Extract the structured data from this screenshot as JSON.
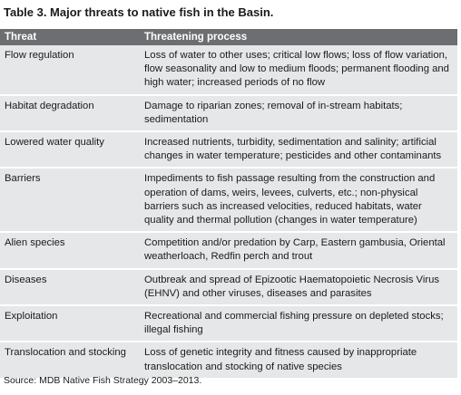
{
  "title": "Table 3. Major threats to native fish in the Basin.",
  "headers": {
    "threat": "Threat",
    "process": "Threatening process"
  },
  "rows": [
    {
      "threat": "Flow regulation",
      "process": "Loss of water to other uses; critical low flows; loss of flow variation, flow seasonality and low to medium floods; permanent flooding and high water; increased periods of no flow"
    },
    {
      "threat": "Habitat degradation",
      "process": "Damage to riparian zones; removal of in-stream habitats; sedimentation"
    },
    {
      "threat": "Lowered water quality",
      "process": "Increased nutrients, turbidity, sedimentation and salinity; artificial changes in water temperature; pesticides and other contaminants"
    },
    {
      "threat": "Barriers",
      "process": "Impediments to fish passage resulting from the construction and operation of dams, weirs, levees, culverts, etc.; non-physical barriers such as increased velocities, reduced habitats, water quality and thermal pollution (changes in water temperature)"
    },
    {
      "threat": "Alien species",
      "process": "Competition and/or predation by Carp, Eastern gambusia, Oriental weatherloach, Redfin perch and trout"
    },
    {
      "threat": "Diseases",
      "process": "Outbreak and spread of Epizootic Haematopoietic Necrosis Virus (EHNV) and other viruses, diseases and parasites"
    },
    {
      "threat": "Exploitation",
      "process": "Recreational and commercial fishing pressure on depleted stocks; illegal fishing"
    },
    {
      "threat": "Translocation and stocking",
      "process": "Loss of genetic integrity and fitness caused by inappropriate translocation and stocking of native species"
    }
  ],
  "source": "Source: MDB Native Fish Strategy 2003–2013.",
  "colors": {
    "header_bg": "#6d6e71",
    "row_bg": "#e6e7e8",
    "row_separator": "#ffffff"
  }
}
